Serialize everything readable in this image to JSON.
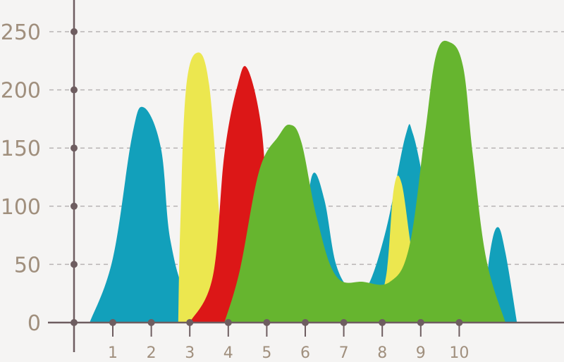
{
  "chart_data": {
    "type": "area",
    "x_ticks": [
      "1",
      "2",
      "3",
      "4",
      "5",
      "6",
      "7",
      "8",
      "9",
      "10"
    ],
    "y_ticks": [
      "0",
      "50",
      "100",
      "150",
      "200",
      "250"
    ],
    "ylim": [
      0,
      250
    ],
    "grid": "horizontal dashed",
    "legend": "none",
    "colors": {
      "blue": "#12a0bb",
      "yellow": "#ece74f",
      "red": "#dc1717",
      "green": "#66b52f",
      "axis": "#6e5d60",
      "grid": "#b8b4b4",
      "tick_label": "#a08f7d",
      "background": "#f5f4f3"
    },
    "series": [
      {
        "color": "blue",
        "points": [
          [
            0.4,
            0
          ],
          [
            1.0,
            55
          ],
          [
            1.5,
            160
          ],
          [
            1.8,
            185
          ],
          [
            2.25,
            150
          ],
          [
            2.5,
            70
          ],
          [
            3.0,
            20
          ],
          [
            4.0,
            0
          ]
        ],
        "extra_points": [
          [
            5.8,
            0
          ],
          [
            6.0,
            80
          ],
          [
            6.2,
            128
          ],
          [
            6.5,
            105
          ],
          [
            6.8,
            50
          ],
          [
            7.2,
            28
          ],
          [
            7.6,
            30
          ],
          [
            8.1,
            80
          ],
          [
            8.6,
            160
          ],
          [
            8.8,
            162
          ],
          [
            9.2,
            100
          ],
          [
            9.8,
            0
          ]
        ],
        "extra_points_2": [
          [
            10.6,
            0
          ],
          [
            10.8,
            60
          ],
          [
            11.0,
            82
          ],
          [
            11.2,
            60
          ],
          [
            11.5,
            0
          ]
        ]
      },
      {
        "color": "yellow",
        "points": [
          [
            2.7,
            0
          ],
          [
            2.75,
            80
          ],
          [
            2.9,
            200
          ],
          [
            3.2,
            232
          ],
          [
            3.5,
            205
          ],
          [
            3.75,
            100
          ],
          [
            3.9,
            30
          ],
          [
            4.2,
            0
          ]
        ],
        "extra_points": [
          [
            7.1,
            0
          ],
          [
            7.3,
            28
          ],
          [
            7.8,
            18
          ],
          [
            8.1,
            40
          ],
          [
            8.3,
            115
          ],
          [
            8.5,
            120
          ],
          [
            8.75,
            65
          ],
          [
            9.0,
            20
          ],
          [
            9.3,
            0
          ]
        ]
      },
      {
        "color": "red",
        "points": [
          [
            3.0,
            0
          ],
          [
            3.6,
            40
          ],
          [
            3.9,
            145
          ],
          [
            4.25,
            205
          ],
          [
            4.5,
            218
          ],
          [
            4.85,
            170
          ],
          [
            5.0,
            100
          ],
          [
            5.15,
            0
          ]
        ]
      },
      {
        "color": "green",
        "points": [
          [
            3.9,
            0
          ],
          [
            4.3,
            45
          ],
          [
            4.8,
            130
          ],
          [
            5.3,
            160
          ],
          [
            5.6,
            170
          ],
          [
            5.9,
            155
          ],
          [
            6.3,
            90
          ],
          [
            6.8,
            40
          ],
          [
            7.5,
            35
          ],
          [
            8.2,
            35
          ],
          [
            8.7,
            65
          ],
          [
            9.1,
            160
          ],
          [
            9.4,
            230
          ],
          [
            9.75,
            241
          ],
          [
            10.1,
            220
          ],
          [
            10.35,
            145
          ],
          [
            10.7,
            55
          ],
          [
            11.2,
            0
          ]
        ]
      }
    ]
  }
}
